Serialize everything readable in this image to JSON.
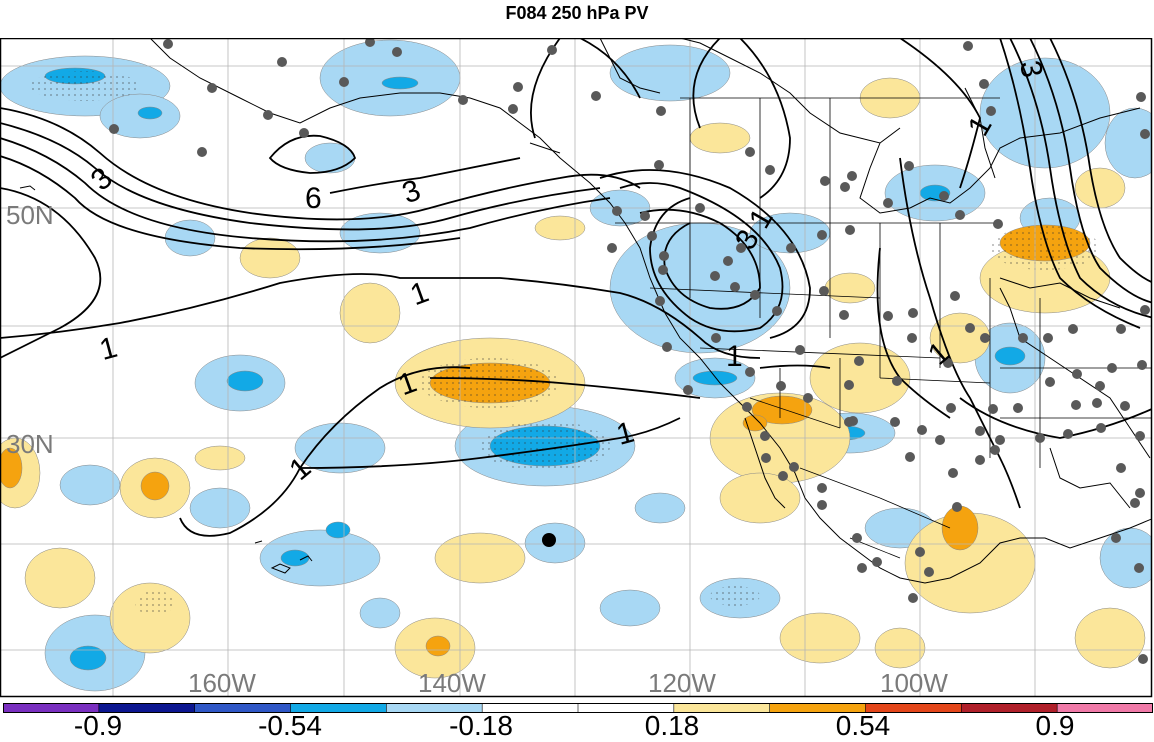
{
  "title": "F084 250 hPa PV",
  "map": {
    "lat_labels": [
      "50N",
      "30N"
    ],
    "lon_labels": [
      "160W",
      "140W",
      "120W",
      "100W"
    ],
    "contour_labels": [
      "3",
      "6",
      "3",
      "3",
      "1",
      "1",
      "1",
      "1",
      "1",
      "1",
      "1",
      "1",
      "3",
      "1"
    ]
  },
  "colorbar": {
    "labels": [
      "-0.9",
      "-0.54",
      "-0.18",
      "0.18",
      "0.54",
      "0.9"
    ],
    "colors": [
      "#7a2fc0",
      "#0c1690",
      "#2f57c6",
      "#12a9e6",
      "#a8d8f4",
      "#ffffff",
      "#ffffff",
      "#fbe69a",
      "#f5a30f",
      "#e4461a",
      "#b0202a",
      "#f07aa8"
    ]
  }
}
